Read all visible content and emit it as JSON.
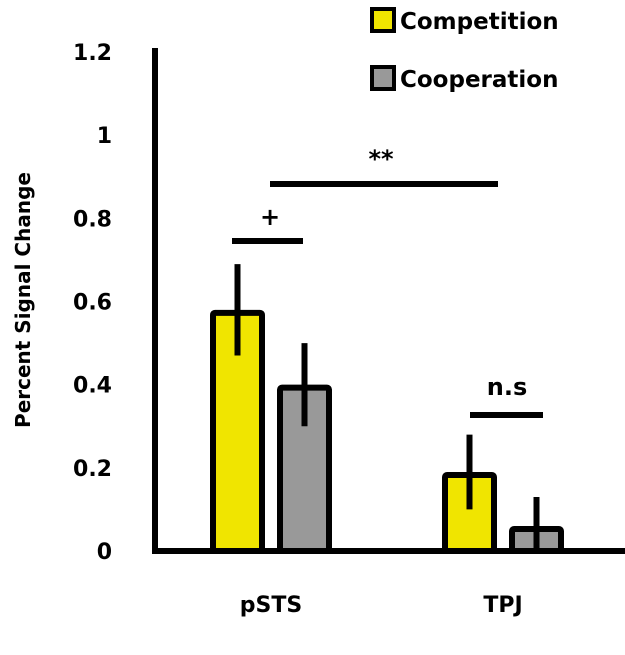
{
  "chart_data": {
    "type": "bar",
    "title": "",
    "xlabel": "",
    "ylabel": "Percent Signal Change",
    "ylim": [
      0,
      1.2
    ],
    "yticks": [
      "0",
      "0.2",
      "0.4",
      "0.6",
      "0.8",
      "1",
      "1.2"
    ],
    "categories": [
      "pSTS",
      "TPJ"
    ],
    "series": [
      {
        "name": "Competition",
        "color": "#f0e500",
        "values": [
          0.58,
          0.19
        ],
        "errors": [
          0.11,
          0.09
        ]
      },
      {
        "name": "Cooperation",
        "color": "#999999",
        "values": [
          0.4,
          0.06
        ],
        "errors": [
          0.1,
          0.07
        ]
      }
    ],
    "legend": "top-right",
    "grid": false,
    "annotations": [
      {
        "text": "+",
        "between": "pSTS Competition vs pSTS Cooperation"
      },
      {
        "text": "**",
        "between": "pSTS vs TPJ"
      },
      {
        "text": "n.s",
        "between": "TPJ Competition vs TPJ Cooperation"
      }
    ]
  }
}
